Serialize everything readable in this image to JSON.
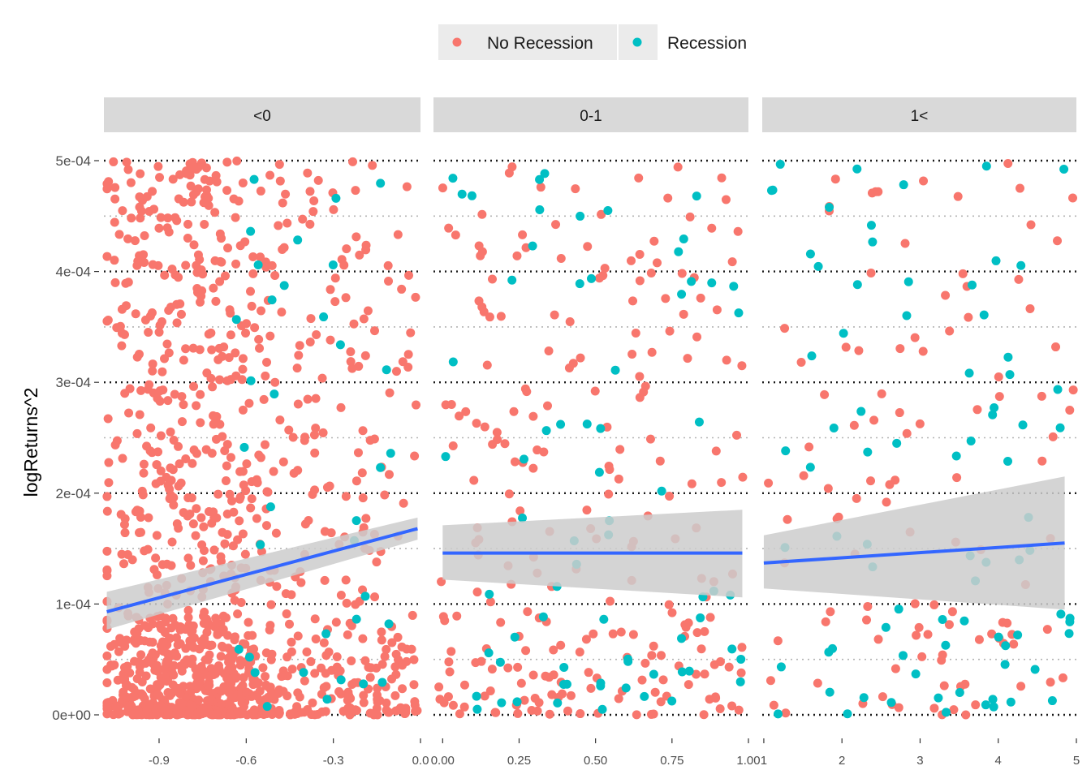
{
  "chart_data": {
    "type": "scatter",
    "ylabel": "logReturns^2",
    "xlabel": "",
    "y_ticks": [
      "0e+00",
      "1e-04",
      "2e-04",
      "3e-04",
      "4e-04",
      "5e-04"
    ],
    "y_tick_values": [
      0,
      0.0001,
      0.0002,
      0.0003,
      0.0004,
      0.0005
    ],
    "ylim": [
      0,
      0.0005
    ],
    "grid": "dotted horizontal",
    "legend": {
      "position": "top",
      "entries": [
        {
          "name": "No Recession",
          "color": "#F8766D"
        },
        {
          "name": "Recession",
          "color": "#00BFC4"
        }
      ]
    },
    "trend_line_color": "#3366FF",
    "confidence_band_color": "#CCCCCC",
    "panels": [
      {
        "strip_label": "<0",
        "xlim": [
          -1.09,
          0.0
        ],
        "x_ticks": [
          -0.9,
          -0.6,
          -0.3,
          0.0
        ],
        "x_tick_labels": [
          "-0.9",
          "-0.6",
          "-0.3",
          "0.0"
        ],
        "smooth": {
          "x": [
            -1.08,
            -0.01
          ],
          "y": [
            9.3e-05,
            0.000168
          ],
          "se_lo": [
            7.7e-05,
            0.000158
          ],
          "se_hi": [
            0.000111,
            0.000178
          ]
        },
        "n_no_recession": 1200,
        "n_recession": 35
      },
      {
        "strip_label": "0-1",
        "xlim": [
          -0.03,
          1.0
        ],
        "x_ticks": [
          0.0,
          0.25,
          0.5,
          0.75,
          1.0
        ],
        "x_tick_labels": [
          "0.00",
          "0.25",
          "0.50",
          "0.75",
          "1.00"
        ],
        "smooth": {
          "x": [
            0.0,
            0.98
          ],
          "y": [
            0.000146,
            0.000146
          ],
          "se_lo": [
            0.000122,
            0.000106
          ],
          "se_hi": [
            0.000171,
            0.000185
          ]
        },
        "n_no_recession": 240,
        "n_recession": 70
      },
      {
        "strip_label": "1<",
        "xlim": [
          0.98,
          5.0
        ],
        "x_ticks": [
          1,
          2,
          3,
          4,
          5
        ],
        "x_tick_labels": [
          "1",
          "2",
          "3",
          "4",
          "5"
        ],
        "smooth": {
          "x": [
            1.0,
            4.85
          ],
          "y": [
            0.000137,
            0.000155
          ],
          "se_lo": [
            0.000114,
            9.5e-05
          ],
          "se_hi": [
            0.000162,
            0.000215
          ]
        },
        "n_no_recession": 110,
        "n_recession": 80
      }
    ]
  }
}
